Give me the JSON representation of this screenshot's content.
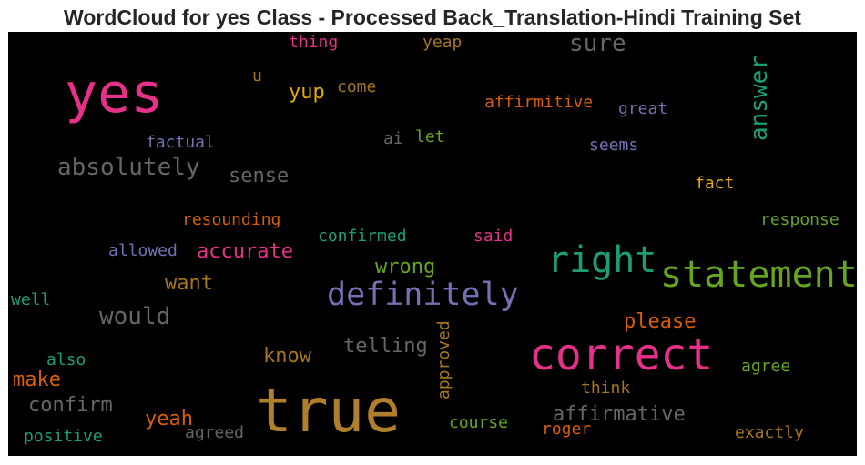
{
  "chart_data": {
    "type": "wordcloud",
    "title": "WordCloud for yes Class - Processed Back_Translation-Hindi Training Set",
    "background": "#000000",
    "colormap": "Dark2",
    "words": [
      {
        "text": "true",
        "color": "#b07f2c"
      },
      {
        "text": "yes",
        "color": "#e6308a"
      },
      {
        "text": "correct",
        "color": "#e6308a"
      },
      {
        "text": "statement",
        "color": "#66a61e"
      },
      {
        "text": "right",
        "color": "#1b9e77"
      },
      {
        "text": "definitely",
        "color": "#7570b3"
      },
      {
        "text": "absolutely",
        "color": "#666666"
      },
      {
        "text": "would",
        "color": "#666666"
      },
      {
        "text": "answer",
        "color": "#1b9e77"
      },
      {
        "text": "affirmative",
        "color": "#666666"
      },
      {
        "text": "sure",
        "color": "#666666"
      },
      {
        "text": "accurate",
        "color": "#e6308a"
      },
      {
        "text": "telling",
        "color": "#666666"
      },
      {
        "text": "confirm",
        "color": "#666666"
      },
      {
        "text": "please",
        "color": "#d95f02"
      },
      {
        "text": "sense",
        "color": "#666666"
      },
      {
        "text": "wrong",
        "color": "#66a61e"
      },
      {
        "text": "want",
        "color": "#a6761d"
      },
      {
        "text": "know",
        "color": "#a6761d"
      },
      {
        "text": "yeah",
        "color": "#d95f02"
      },
      {
        "text": "make",
        "color": "#d95f02"
      },
      {
        "text": "yup",
        "color": "#e6ab02"
      },
      {
        "text": "approved",
        "color": "#a6761d"
      },
      {
        "text": "affirmitive",
        "color": "#d95f02"
      },
      {
        "text": "resounding",
        "color": "#d95f02"
      },
      {
        "text": "confirmed",
        "color": "#1b9e77"
      },
      {
        "text": "allowed",
        "color": "#7570b3"
      },
      {
        "text": "factual",
        "color": "#7570b3"
      },
      {
        "text": "great",
        "color": "#7570b3"
      },
      {
        "text": "seems",
        "color": "#7570b3"
      },
      {
        "text": "fact",
        "color": "#e6ab02"
      },
      {
        "text": "response",
        "color": "#66a61e"
      },
      {
        "text": "said",
        "color": "#e6308a"
      },
      {
        "text": "agree",
        "color": "#66a61e"
      },
      {
        "text": "think",
        "color": "#a6761d"
      },
      {
        "text": "exactly",
        "color": "#a6761d"
      },
      {
        "text": "roger",
        "color": "#d95f02"
      },
      {
        "text": "course",
        "color": "#66a61e"
      },
      {
        "text": "agreed",
        "color": "#666666"
      },
      {
        "text": "positive",
        "color": "#1b9e77"
      },
      {
        "text": "also",
        "color": "#1b9e77"
      },
      {
        "text": "well",
        "color": "#1b9e77"
      },
      {
        "text": "thing",
        "color": "#e6308a"
      },
      {
        "text": "yeap",
        "color": "#a6761d"
      },
      {
        "text": "come",
        "color": "#a6761d"
      },
      {
        "text": "u",
        "color": "#a6761d"
      },
      {
        "text": "ai",
        "color": "#666666"
      },
      {
        "text": "let",
        "color": "#66a61e"
      }
    ]
  }
}
